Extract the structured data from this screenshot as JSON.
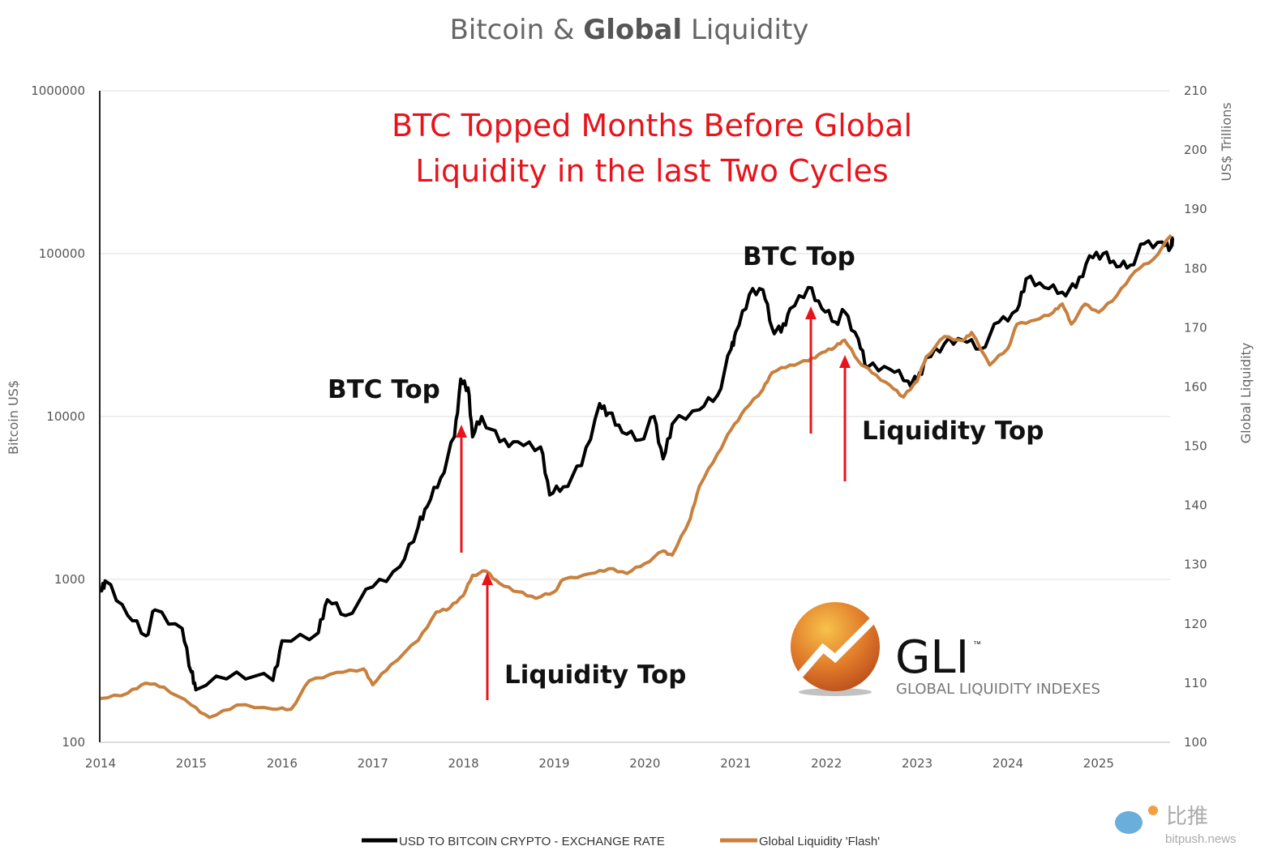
{
  "chart_data": {
    "type": "line",
    "title_part1": "Bitcoin & ",
    "title_part2": "Global",
    "title_part3": " Liquidity",
    "subtitle_line1": "BTC Topped Months Before Global",
    "subtitle_line2": "Liquidity in the last Two Cycles",
    "ylabel_left": "Bitcoin US$",
    "ylabel_right": "Global Liquidity",
    "ylabel_right_units": "US$ Trillions",
    "x_ticks": [
      "2014",
      "2015",
      "2016",
      "2017",
      "2018",
      "2019",
      "2020",
      "2021",
      "2022",
      "2023",
      "2024",
      "2025"
    ],
    "y_left_scale": "log",
    "y_left_ticks": [
      "100",
      "1000",
      "10000",
      "100000",
      "1000000"
    ],
    "y_left_lim": [
      100,
      1000000
    ],
    "y_right_ticks": [
      "100",
      "110",
      "120",
      "130",
      "140",
      "150",
      "160",
      "170",
      "180",
      "190",
      "200",
      "210"
    ],
    "y_right_lim": [
      100,
      210
    ],
    "xlim": [
      2014,
      2025.8
    ],
    "grid": "horizontal",
    "legend_position": "bottom",
    "series": [
      {
        "name": "USD TO BITCOIN CRYPTO - EXCHANGE RATE",
        "axis": "left",
        "color": "#000000",
        "x": [
          2014.0,
          2014.05,
          2014.3,
          2014.5,
          2014.6,
          2014.9,
          2015.0,
          2015.05,
          2015.5,
          2015.9,
          2016.0,
          2016.4,
          2016.5,
          2016.7,
          2017.0,
          2017.3,
          2017.5,
          2017.6,
          2017.75,
          2017.9,
          2017.97,
          2018.05,
          2018.1,
          2018.2,
          2018.4,
          2018.6,
          2018.85,
          2018.95,
          2019.1,
          2019.3,
          2019.5,
          2019.6,
          2019.75,
          2019.95,
          2020.1,
          2020.2,
          2020.3,
          2020.6,
          2020.8,
          2020.95,
          2021.0,
          2021.15,
          2021.3,
          2021.4,
          2021.5,
          2021.6,
          2021.8,
          2021.95,
          2022.1,
          2022.2,
          2022.35,
          2022.45,
          2022.7,
          2022.9,
          2023.0,
          2023.1,
          2023.3,
          2023.5,
          2023.7,
          2023.9,
          2024.1,
          2024.2,
          2024.4,
          2024.6,
          2024.75,
          2024.9,
          2025.05,
          2025.2,
          2025.35,
          2025.5,
          2025.7,
          2025.8,
          2025.82
        ],
        "values": [
          850,
          980,
          600,
          450,
          650,
          500,
          270,
          210,
          270,
          240,
          420,
          470,
          750,
          600,
          900,
          1200,
          2100,
          2800,
          4200,
          7500,
          17000,
          15000,
          7500,
          10000,
          7000,
          7000,
          6500,
          3300,
          3700,
          5000,
          12000,
          10500,
          8000,
          7200,
          10000,
          5500,
          9000,
          11000,
          13500,
          26000,
          33000,
          56000,
          60000,
          35000,
          33000,
          46000,
          62000,
          46000,
          38000,
          44000,
          30000,
          20000,
          19500,
          16500,
          16500,
          23000,
          28000,
          29500,
          26000,
          38000,
          45000,
          70000,
          62000,
          58000,
          62000,
          97000,
          100000,
          83000,
          85000,
          115000,
          118000,
          110000,
          124000
        ]
      },
      {
        "name": "Global Liquidity 'Flash'",
        "axis": "right",
        "color": "#c8803e",
        "x": [
          2014.0,
          2014.3,
          2014.5,
          2014.7,
          2015.0,
          2015.2,
          2015.5,
          2015.9,
          2016.1,
          2016.3,
          2016.6,
          2016.9,
          2017.0,
          2017.2,
          2017.5,
          2017.7,
          2017.85,
          2018.0,
          2018.1,
          2018.25,
          2018.4,
          2018.6,
          2018.8,
          2019.0,
          2019.1,
          2019.4,
          2019.6,
          2019.8,
          2020.0,
          2020.2,
          2020.3,
          2020.5,
          2020.6,
          2020.8,
          2020.95,
          2021.1,
          2021.3,
          2021.4,
          2021.6,
          2021.8,
          2021.95,
          2022.1,
          2022.2,
          2022.35,
          2022.5,
          2022.7,
          2022.85,
          2023.0,
          2023.1,
          2023.3,
          2023.5,
          2023.6,
          2023.8,
          2024.0,
          2024.1,
          2024.3,
          2024.5,
          2024.6,
          2024.7,
          2024.85,
          2025.0,
          2025.2,
          2025.4,
          2025.6,
          2025.8
        ],
        "values": [
          107.4,
          108.3,
          110,
          109.3,
          106.3,
          104.2,
          106.3,
          105.6,
          105.6,
          110.4,
          111.8,
          112.4,
          109.7,
          113.1,
          117.2,
          122,
          122.7,
          124.8,
          128.2,
          128.9,
          126.8,
          125.4,
          124.3,
          125.4,
          127.5,
          128.5,
          129.3,
          128.5,
          130.2,
          132.3,
          131.6,
          137.8,
          143.2,
          148.7,
          152.8,
          156.2,
          159.6,
          162.4,
          163.7,
          164.4,
          165.8,
          166.8,
          167.9,
          164.4,
          162.4,
          160.3,
          158.3,
          161,
          165.1,
          168.5,
          167.8,
          169.2,
          163.7,
          166.5,
          170.6,
          171.3,
          172.6,
          174,
          170.6,
          174,
          172.6,
          175.4,
          179.5,
          181.5,
          185.6
        ]
      }
    ],
    "annotations": [
      {
        "text": "BTC Top",
        "x": 2017.97
      },
      {
        "text": "Liquidity Top",
        "x": 2018.25
      },
      {
        "text": "BTC Top",
        "x": 2021.8
      },
      {
        "text": "Liquidity Top",
        "x": 2022.2
      }
    ]
  },
  "logo": {
    "mark": "GLI",
    "tm": "™",
    "name": "GLOBAL LIQUIDITY INDEXES"
  },
  "watermark": {
    "cn": "比推",
    "site": "bitpush.news"
  }
}
